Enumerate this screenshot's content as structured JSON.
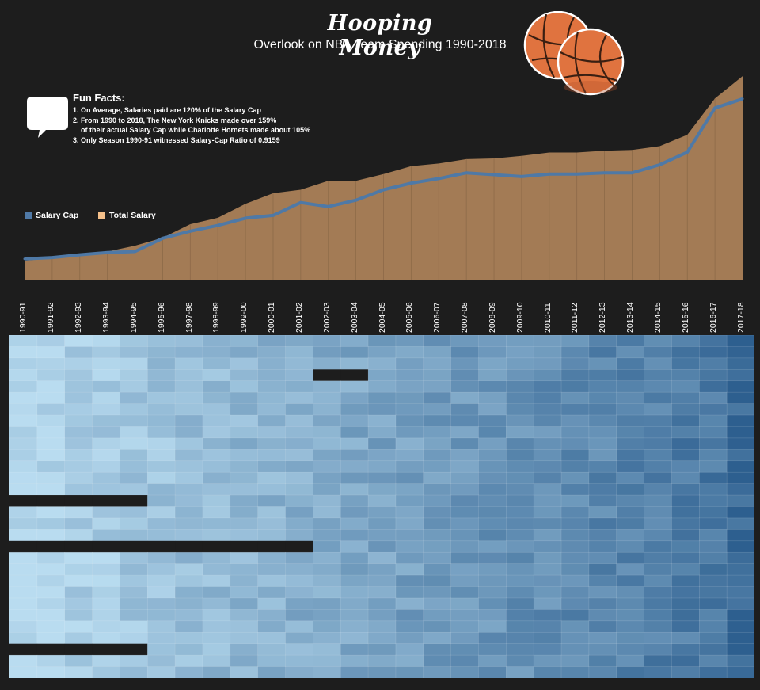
{
  "header": {
    "title": "Hooping Money",
    "subtitle": "Overlook on NBA Team Spending 1990-2018"
  },
  "fun_facts": {
    "title": "Fun Facts:",
    "lines": [
      "1. On Average, Salaries paid are 120% of the Salary Cap",
      "2. From 1990 to 2018, The New York Knicks made over 159%",
      "    of their actual Salary Cap while Charlotte Hornets made about 105%",
      "3. Only Season 1990-91 witnessed Salary-Cap Ratio of 0.9159"
    ]
  },
  "legend": {
    "salary_cap": "Salary Cap",
    "total_salary": "Total Salary"
  },
  "colors": {
    "background": "#1d1d1d",
    "salary_cap_line": "#4f79a6",
    "total_salary_area": "#a37b55",
    "total_salary_legend": "#f5c08a",
    "heat_low": "#b9dcf0",
    "heat_high": "#2d5f8f",
    "missing": "#1d1d1d",
    "basketball": "#e0733f"
  },
  "chart_data": [
    {
      "type": "area",
      "x": [
        "1990-91",
        "1991-92",
        "1992-93",
        "1993-94",
        "1994-95",
        "1995-96",
        "1997-98",
        "1998-99",
        "1999-00",
        "2000-01",
        "2001-02",
        "2002-03",
        "2003-04",
        "2004-05",
        "2005-06",
        "2006-07",
        "2007-08",
        "2008-09",
        "2009-10",
        "2010-11",
        "2011-12",
        "2012-13",
        "2013-14",
        "2014-15",
        "2015-16",
        "2016-17",
        "2017-18"
      ],
      "series": [
        {
          "name": "Total Salary",
          "kind": "area",
          "values": [
            10.8,
            12.1,
            13.7,
            15.8,
            19.0,
            23.3,
            30.7,
            34.2,
            41.8,
            47.6,
            49.5,
            54.4,
            54.4,
            58.0,
            62.4,
            63.8,
            66.2,
            66.6,
            68.0,
            69.8,
            69.8,
            70.8,
            71.2,
            73.3,
            79.5,
            99.3,
            111.5
          ]
        },
        {
          "name": "Salary Cap",
          "kind": "line",
          "values": [
            11.8,
            12.5,
            14.0,
            15.2,
            15.8,
            23.0,
            26.9,
            30.0,
            34.0,
            35.5,
            42.5,
            40.3,
            43.8,
            49.5,
            53.1,
            55.6,
            58.7,
            57.7,
            56.7,
            58.0,
            58.0,
            58.7,
            58.7,
            63.1,
            70.0,
            94.1,
            99.1
          ]
        }
      ],
      "ylim": [
        0,
        115
      ]
    },
    {
      "type": "heatmap",
      "columns": [
        "1990-91",
        "1991-92",
        "1992-93",
        "1993-94",
        "1994-95",
        "1995-96",
        "1997-98",
        "1998-99",
        "1999-00",
        "2000-01",
        "2001-02",
        "2002-03",
        "2003-04",
        "2004-05",
        "2005-06",
        "2006-07",
        "2007-08",
        "2008-09",
        "2009-10",
        "2010-11",
        "2011-12",
        "2012-13",
        "2013-14",
        "2014-15",
        "2015-16",
        "2016-17",
        "2017-18"
      ],
      "rows": 30,
      "missing": [
        [
          3,
          11
        ],
        [
          3,
          12
        ],
        [
          14,
          0
        ],
        [
          14,
          1
        ],
        [
          14,
          2
        ],
        [
          14,
          3
        ],
        [
          14,
          4
        ],
        [
          18,
          0
        ],
        [
          18,
          1
        ],
        [
          18,
          2
        ],
        [
          18,
          3
        ],
        [
          18,
          4
        ],
        [
          18,
          5
        ],
        [
          18,
          6
        ],
        [
          18,
          7
        ],
        [
          18,
          8
        ],
        [
          18,
          9
        ],
        [
          18,
          10
        ],
        [
          27,
          0
        ],
        [
          27,
          1
        ],
        [
          27,
          2
        ],
        [
          27,
          3
        ],
        [
          27,
          4
        ]
      ],
      "value_scale": "sequential light-blue to dark-blue (low to high spending)"
    }
  ]
}
